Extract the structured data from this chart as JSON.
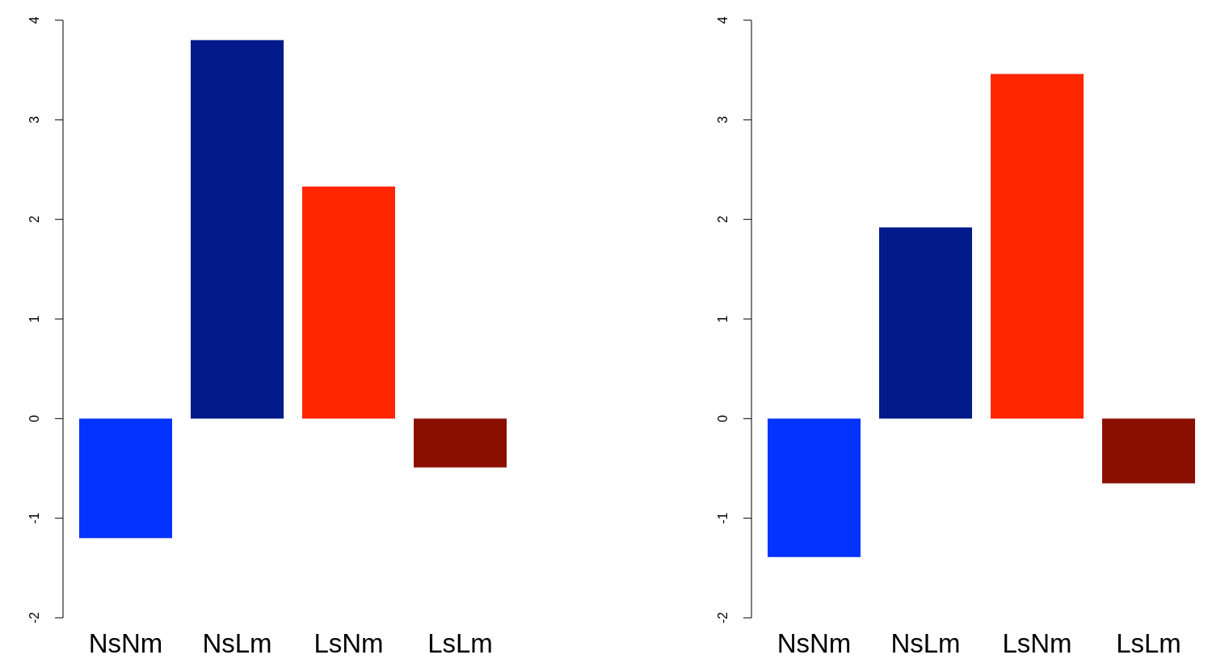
{
  "chart_data": [
    {
      "type": "bar",
      "categories": [
        "NsNm",
        "NsLm",
        "LsNm",
        "LsLm"
      ],
      "values": [
        -1.2,
        3.8,
        2.33,
        -0.49
      ],
      "colors": [
        "#0433ff",
        "#021a8a",
        "#ff2600",
        "#8b0f00"
      ],
      "ylim": [
        -2,
        4
      ],
      "yticks": [
        -2,
        -1,
        0,
        1,
        2,
        3,
        4
      ]
    },
    {
      "type": "bar",
      "categories": [
        "NsNm",
        "NsLm",
        "LsNm",
        "LsLm"
      ],
      "values": [
        -1.39,
        1.92,
        3.46,
        -0.65
      ],
      "colors": [
        "#0433ff",
        "#021a8a",
        "#ff2600",
        "#8b0f00"
      ],
      "ylim": [
        -2,
        4
      ],
      "yticks": [
        -2,
        -1,
        0,
        1,
        2,
        3,
        4
      ]
    }
  ]
}
